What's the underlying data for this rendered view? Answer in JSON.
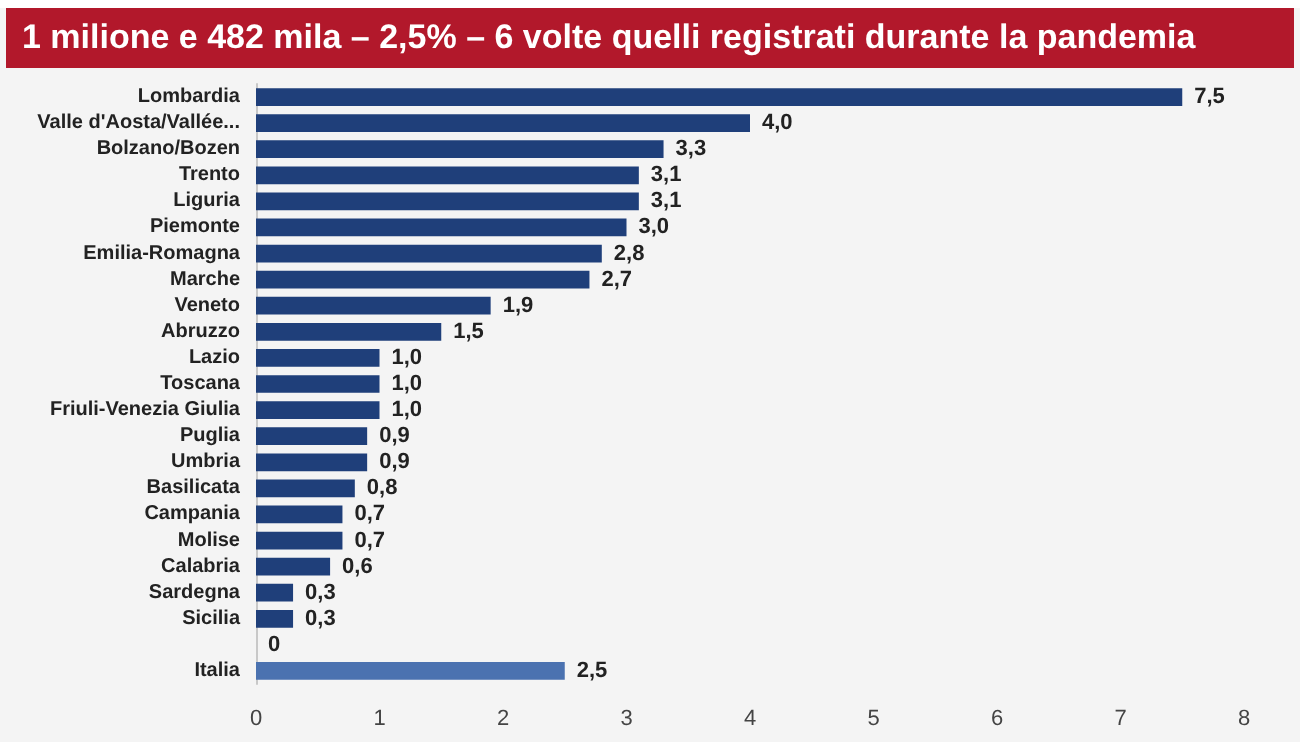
{
  "chart_data": {
    "type": "bar",
    "orientation": "horizontal",
    "title": "1 milione e 482 mila – 2,5% – 6 volte quelli registrati durante la pandemia",
    "categories": [
      "Lombardia",
      "Valle d'Aosta/Vallée...",
      "Bolzano/Bozen",
      "Trento",
      "Liguria",
      "Piemonte",
      "Emilia-Romagna",
      "Marche",
      "Veneto",
      "Abruzzo",
      "Lazio",
      "Toscana",
      "Friuli-Venezia Giulia",
      "Puglia",
      "Umbria",
      "Basilicata",
      "Campania",
      "Molise",
      "Calabria",
      "Sardegna",
      "Sicilia",
      null,
      "Italia"
    ],
    "values": [
      7.5,
      4.0,
      3.3,
      3.1,
      3.1,
      3.0,
      2.8,
      2.7,
      1.9,
      1.5,
      1.0,
      1.0,
      1.0,
      0.9,
      0.9,
      0.8,
      0.7,
      0.7,
      0.6,
      0.3,
      0.3,
      0,
      2.5
    ],
    "value_labels": [
      "7,5",
      "4,0",
      "3,3",
      "3,1",
      "3,1",
      "3,0",
      "2,8",
      "2,7",
      "1,9",
      "1,5",
      "1,0",
      "1,0",
      "1,0",
      "0,9",
      "0,9",
      "0,8",
      "0,7",
      "0,7",
      "0,6",
      "0,3",
      "0,3",
      "0",
      "2,5"
    ],
    "colors": [
      "#1f3f7a",
      "#1f3f7a",
      "#1f3f7a",
      "#1f3f7a",
      "#1f3f7a",
      "#1f3f7a",
      "#1f3f7a",
      "#1f3f7a",
      "#1f3f7a",
      "#1f3f7a",
      "#1f3f7a",
      "#1f3f7a",
      "#1f3f7a",
      "#1f3f7a",
      "#1f3f7a",
      "#1f3f7a",
      "#1f3f7a",
      "#1f3f7a",
      "#1f3f7a",
      "#1f3f7a",
      "#1f3f7a",
      "#1f3f7a",
      "#4b72b0"
    ],
    "xlim": [
      0,
      8
    ],
    "xticks": [
      0,
      1,
      2,
      3,
      4,
      5,
      6,
      7,
      8
    ],
    "grid": false
  }
}
